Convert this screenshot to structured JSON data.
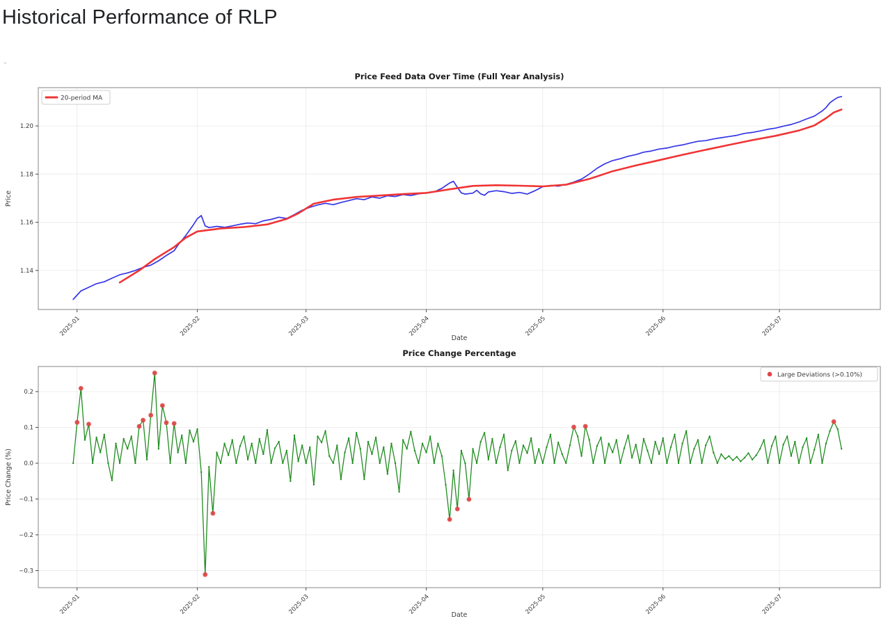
{
  "page": {
    "title": "Historical Performance of RLP"
  },
  "chart_data": [
    {
      "type": "line",
      "title": "Price Feed Data Over Time (Full Year Analysis)",
      "xlabel": "Date",
      "ylabel": "Price",
      "x_unit": "days since 2024-12-31",
      "xlim": [
        -9,
        208
      ],
      "ylim": [
        1.1238,
        1.2159
      ],
      "grid": true,
      "x_ticks": [
        {
          "label": "2025-01",
          "day": 1
        },
        {
          "label": "2025-02",
          "day": 32
        },
        {
          "label": "2025-03",
          "day": 60
        },
        {
          "label": "2025-04",
          "day": 91
        },
        {
          "label": "2025-05",
          "day": 121
        },
        {
          "label": "2025-06",
          "day": 152
        },
        {
          "label": "2025-07",
          "day": 182
        }
      ],
      "y_ticks": [
        {
          "label": "1.14",
          "value": 1.14
        },
        {
          "label": "1.16",
          "value": 1.16
        },
        {
          "label": "1.18",
          "value": 1.18
        },
        {
          "label": "1.20",
          "value": 1.2
        }
      ],
      "legend": {
        "position": "upper-left",
        "entries": [
          {
            "label": "20-period MA",
            "color": "#f03434",
            "swatch": "line"
          }
        ]
      },
      "series": [
        {
          "name": "Price",
          "color": "#3434e8",
          "width": 1.7,
          "points": [
            [
              0,
              1.128
            ],
            [
              2,
              1.1315
            ],
            [
              4,
              1.133
            ],
            [
              6,
              1.1345
            ],
            [
              8,
              1.1353
            ],
            [
              10,
              1.1368
            ],
            [
              12,
              1.1382
            ],
            [
              14,
              1.139
            ],
            [
              16,
              1.14
            ],
            [
              18,
              1.1413
            ],
            [
              20,
              1.1422
            ],
            [
              22,
              1.144
            ],
            [
              24,
              1.1462
            ],
            [
              26,
              1.1482
            ],
            [
              27,
              1.1505
            ],
            [
              29,
              1.1545
            ],
            [
              31,
              1.159
            ],
            [
              32,
              1.1615
            ],
            [
              33,
              1.1628
            ],
            [
              34,
              1.1585
            ],
            [
              35,
              1.1578
            ],
            [
              37,
              1.1583
            ],
            [
              39,
              1.1579
            ],
            [
              41,
              1.1585
            ],
            [
              43,
              1.1592
            ],
            [
              45,
              1.1597
            ],
            [
              47,
              1.1594
            ],
            [
              49,
              1.1606
            ],
            [
              51,
              1.1612
            ],
            [
              53,
              1.1621
            ],
            [
              55,
              1.1616
            ],
            [
              57,
              1.1632
            ],
            [
              59,
              1.165
            ],
            [
              61,
              1.1662
            ],
            [
              63,
              1.1672
            ],
            [
              65,
              1.1679
            ],
            [
              67,
              1.1673
            ],
            [
              69,
              1.1682
            ],
            [
              71,
              1.169
            ],
            [
              73,
              1.1698
            ],
            [
              75,
              1.1694
            ],
            [
              77,
              1.1705
            ],
            [
              79,
              1.17
            ],
            [
              81,
              1.171
            ],
            [
              83,
              1.1707
            ],
            [
              85,
              1.1715
            ],
            [
              87,
              1.1711
            ],
            [
              89,
              1.1718
            ],
            [
              91,
              1.1721
            ],
            [
              93,
              1.1726
            ],
            [
              95,
              1.1741
            ],
            [
              96,
              1.1752
            ],
            [
              97,
              1.1763
            ],
            [
              98,
              1.177
            ],
            [
              99,
              1.1745
            ],
            [
              100,
              1.1722
            ],
            [
              101,
              1.1717
            ],
            [
              103,
              1.1721
            ],
            [
              104,
              1.1733
            ],
            [
              105,
              1.1718
            ],
            [
              106,
              1.1712
            ],
            [
              107,
              1.1726
            ],
            [
              109,
              1.1731
            ],
            [
              111,
              1.1727
            ],
            [
              113,
              1.172
            ],
            [
              115,
              1.1724
            ],
            [
              117,
              1.1717
            ],
            [
              119,
              1.1731
            ],
            [
              121,
              1.1748
            ],
            [
              123,
              1.1753
            ],
            [
              125,
              1.175
            ],
            [
              127,
              1.1757
            ],
            [
              129,
              1.1767
            ],
            [
              131,
              1.1779
            ],
            [
              133,
              1.18
            ],
            [
              135,
              1.1824
            ],
            [
              137,
              1.1843
            ],
            [
              139,
              1.1856
            ],
            [
              141,
              1.1864
            ],
            [
              143,
              1.1874
            ],
            [
              145,
              1.1881
            ],
            [
              147,
              1.1891
            ],
            [
              149,
              1.1896
            ],
            [
              151,
              1.1904
            ],
            [
              153,
              1.1908
            ],
            [
              155,
              1.1916
            ],
            [
              157,
              1.1921
            ],
            [
              159,
              1.1929
            ],
            [
              161,
              1.1936
            ],
            [
              163,
              1.1939
            ],
            [
              165,
              1.1946
            ],
            [
              167,
              1.1951
            ],
            [
              169,
              1.1956
            ],
            [
              171,
              1.1961
            ],
            [
              173,
              1.1969
            ],
            [
              175,
              1.1973
            ],
            [
              177,
              1.1979
            ],
            [
              179,
              1.1986
            ],
            [
              181,
              1.1991
            ],
            [
              183,
              1.1999
            ],
            [
              185,
              1.2006
            ],
            [
              187,
              1.2016
            ],
            [
              189,
              1.2029
            ],
            [
              191,
              1.2041
            ],
            [
              193,
              1.2062
            ],
            [
              194,
              1.2076
            ],
            [
              195,
              1.2096
            ],
            [
              196,
              1.2108
            ],
            [
              197,
              1.2118
            ],
            [
              198,
              1.2122
            ]
          ]
        },
        {
          "name": "20-period MA",
          "color": "#f03434",
          "width": 2.6,
          "points": [
            [
              12,
              1.135
            ],
            [
              17,
              1.14
            ],
            [
              21,
              1.1447
            ],
            [
              26,
              1.1497
            ],
            [
              29,
              1.1536
            ],
            [
              32,
              1.1562
            ],
            [
              38,
              1.1574
            ],
            [
              44,
              1.158
            ],
            [
              50,
              1.1591
            ],
            [
              55,
              1.1614
            ],
            [
              58,
              1.1637
            ],
            [
              62,
              1.1677
            ],
            [
              67,
              1.1694
            ],
            [
              73,
              1.1705
            ],
            [
              79,
              1.1711
            ],
            [
              85,
              1.1717
            ],
            [
              91,
              1.1722
            ],
            [
              97,
              1.1737
            ],
            [
              103,
              1.1751
            ],
            [
              109,
              1.1754
            ],
            [
              115,
              1.1752
            ],
            [
              121,
              1.1749
            ],
            [
              127,
              1.1756
            ],
            [
              133,
              1.178
            ],
            [
              139,
              1.1812
            ],
            [
              145,
              1.1836
            ],
            [
              151,
              1.1858
            ],
            [
              157,
              1.188
            ],
            [
              163,
              1.1901
            ],
            [
              169,
              1.1921
            ],
            [
              175,
              1.1941
            ],
            [
              181,
              1.1959
            ],
            [
              187,
              1.1981
            ],
            [
              191,
              1.2002
            ],
            [
              194,
              1.2032
            ],
            [
              196,
              1.2056
            ],
            [
              198,
              1.2068
            ]
          ]
        }
      ]
    },
    {
      "type": "line",
      "title": "Price Change Percentage",
      "xlabel": "Date",
      "ylabel": "Price Change (%)",
      "x_unit": "days since 2024-12-31",
      "xlim": [
        -9,
        208
      ],
      "ylim": [
        -0.3476,
        0.27
      ],
      "grid": true,
      "x_ticks": [
        {
          "label": "2025-01",
          "day": 1
        },
        {
          "label": "2025-02",
          "day": 32
        },
        {
          "label": "2025-03",
          "day": 60
        },
        {
          "label": "2025-04",
          "day": 91
        },
        {
          "label": "2025-05",
          "day": 121
        },
        {
          "label": "2025-06",
          "day": 152
        },
        {
          "label": "2025-07",
          "day": 182
        }
      ],
      "y_ticks": [
        {
          "label": "0.2",
          "value": 0.2
        },
        {
          "label": "0.1",
          "value": 0.1
        },
        {
          "label": "0.0",
          "value": 0.0
        },
        {
          "label": "−0.1",
          "value": -0.1
        },
        {
          "label": "−0.2",
          "value": -0.2
        },
        {
          "label": "−0.3",
          "value": -0.3
        }
      ],
      "legend": {
        "position": "upper-right",
        "entries": [
          {
            "label": "Large Deviations (>0.10%)",
            "color": "#e04545",
            "swatch": "dot"
          }
        ]
      },
      "deviation_threshold": 0.1,
      "marker_color": "#e04545",
      "series": [
        {
          "name": "Price Change (%)",
          "color": "#1f8c1f",
          "width": 1.3,
          "vertex_dots": true,
          "start_day": 0,
          "step_days": 1,
          "values": [
            0.0,
            0.114,
            0.209,
            0.065,
            0.109,
            0.0,
            0.072,
            0.03,
            0.08,
            0.0,
            -0.048,
            0.055,
            0.0,
            0.068,
            0.04,
            0.075,
            0.0,
            0.103,
            0.12,
            0.01,
            0.134,
            0.252,
            0.04,
            0.161,
            0.113,
            0.0,
            0.111,
            0.03,
            0.078,
            0.0,
            0.092,
            0.06,
            0.095,
            -0.025,
            -0.311,
            -0.01,
            -0.14,
            0.03,
            0.0,
            0.055,
            0.022,
            0.065,
            0.0,
            0.048,
            0.075,
            0.01,
            0.055,
            0.0,
            0.068,
            0.025,
            0.093,
            0.0,
            0.042,
            0.06,
            0.0,
            0.035,
            -0.05,
            0.078,
            0.005,
            0.05,
            0.0,
            0.045,
            -0.06,
            0.075,
            0.058,
            0.09,
            0.02,
            0.0,
            0.05,
            -0.045,
            0.03,
            0.07,
            0.0,
            0.085,
            0.04,
            -0.045,
            0.06,
            0.025,
            0.072,
            0.0,
            0.045,
            -0.03,
            0.055,
            0.0,
            -0.08,
            0.065,
            0.04,
            0.088,
            0.035,
            0.0,
            0.055,
            0.03,
            0.075,
            0.0,
            0.055,
            0.02,
            -0.06,
            -0.157,
            -0.02,
            -0.128,
            0.035,
            0.0,
            -0.101,
            0.04,
            0.0,
            0.06,
            0.085,
            0.01,
            0.068,
            0.0,
            0.045,
            0.08,
            -0.02,
            0.035,
            0.062,
            0.0,
            0.05,
            0.028,
            0.07,
            0.0,
            0.04,
            0.0,
            0.045,
            0.08,
            0.0,
            0.058,
            0.025,
            0.0,
            0.05,
            0.101,
            0.075,
            0.02,
            0.103,
            0.065,
            0.0,
            0.048,
            0.072,
            0.0,
            0.055,
            0.03,
            0.065,
            0.0,
            0.042,
            0.078,
            0.015,
            0.052,
            0.0,
            0.068,
            0.035,
            0.0,
            0.06,
            0.025,
            0.07,
            0.0,
            0.045,
            0.08,
            0.0,
            0.055,
            0.09,
            0.0,
            0.04,
            0.065,
            0.0,
            0.05,
            0.075,
            0.03,
            0.0,
            0.025,
            0.012,
            0.02,
            0.008,
            0.018,
            0.005,
            0.015,
            0.028,
            0.01,
            0.022,
            0.04,
            0.065,
            0.0,
            0.048,
            0.075,
            0.0,
            0.052,
            0.075,
            0.02,
            0.06,
            0.0,
            0.045,
            0.07,
            0.0,
            0.038,
            0.08,
            0.0,
            0.055,
            0.09,
            0.116,
            0.095,
            0.04
          ]
        }
      ]
    }
  ],
  "style": {
    "grid_color": "#ebebeb",
    "spine_color": "#8f8f8f",
    "tick_color": "#444444",
    "tick_label_color": "#3a3a3a",
    "title_color": "#1a1a1a",
    "legend_border_color": "#cccccc"
  }
}
